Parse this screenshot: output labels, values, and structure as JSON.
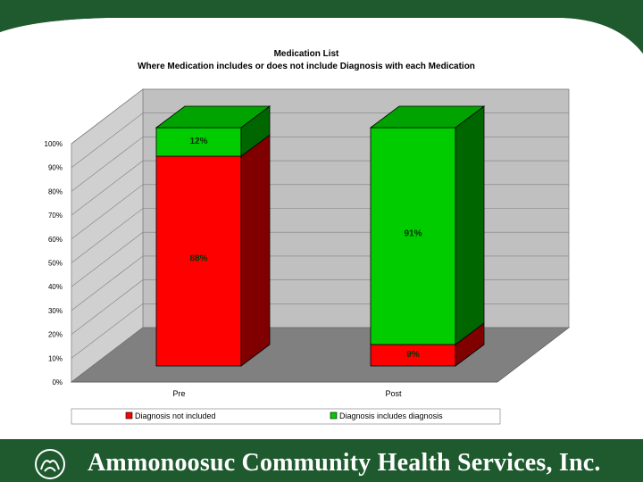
{
  "footer": {
    "org_name": "Ammonoosuc Community Health Services, Inc."
  },
  "colors": {
    "background": "#1e5a2e",
    "not_included": "#ff0000",
    "includes": "#00cc00"
  },
  "chart_data": {
    "type": "bar",
    "stacked": true,
    "three_d": true,
    "title": "Medication List",
    "subtitle": "Where Medication includes or does not include Diagnosis with each Medication",
    "categories": [
      "Pre",
      "Post"
    ],
    "series": [
      {
        "name": "Diagnosis not included",
        "values": [
          88,
          9
        ],
        "labels": [
          "88%",
          "9%"
        ],
        "color": "#ff0000"
      },
      {
        "name": "Diagnosis includes diagnosis",
        "values": [
          12,
          91
        ],
        "labels": [
          "12%",
          "91%"
        ],
        "color": "#00cc00"
      }
    ],
    "y_ticks": [
      "0%",
      "10%",
      "20%",
      "30%",
      "40%",
      "50%",
      "60%",
      "70%",
      "80%",
      "90%",
      "100%"
    ],
    "ylim": [
      0,
      100
    ],
    "grid": true,
    "legend_position": "bottom"
  }
}
